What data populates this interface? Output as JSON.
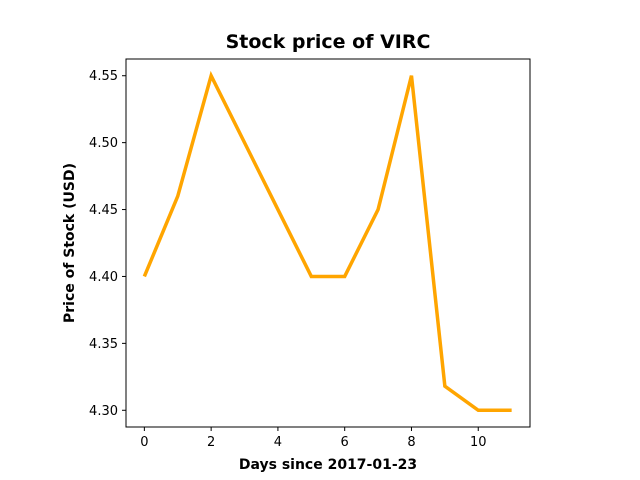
{
  "chart_data": {
    "type": "line",
    "title": "Stock price of VIRC",
    "xlabel": "Days since 2017-01-23",
    "ylabel": "Price of Stock (USD)",
    "xlim": [
      -0.55,
      11.55
    ],
    "ylim": [
      4.2875,
      4.5625
    ],
    "xticks": [
      0,
      2,
      4,
      6,
      8,
      10
    ],
    "xtick_labels": [
      "0",
      "2",
      "4",
      "6",
      "8",
      "10"
    ],
    "yticks": [
      4.3,
      4.35,
      4.4,
      4.45,
      4.5,
      4.55
    ],
    "ytick_labels": [
      "4.30",
      "4.35",
      "4.40",
      "4.45",
      "4.50",
      "4.55"
    ],
    "grid": false,
    "legend": "none",
    "series": [
      {
        "color": "#FFA500",
        "x": [
          0,
          1,
          2,
          3,
          4,
          5,
          6,
          7,
          8,
          9,
          10,
          11
        ],
        "y": [
          4.4,
          4.46,
          4.55,
          4.5,
          4.45,
          4.4,
          4.4,
          4.45,
          4.55,
          4.318,
          4.3,
          4.3
        ]
      }
    ]
  }
}
